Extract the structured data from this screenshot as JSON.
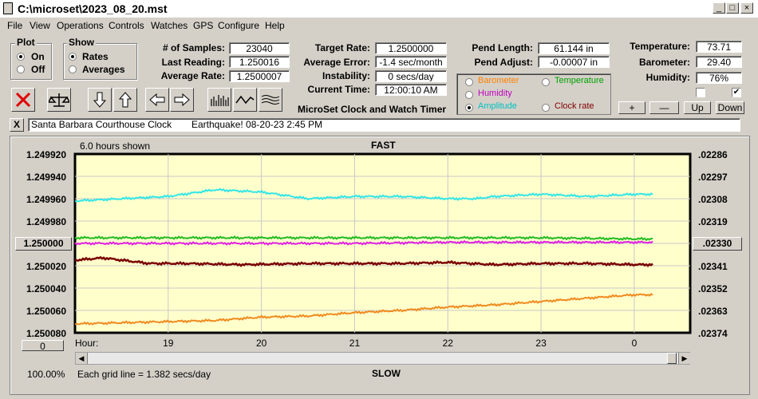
{
  "window": {
    "title": "C:\\microset\\2023_08_20.mst"
  },
  "menu": [
    "File",
    "View",
    "Operations",
    "Controls",
    "Watches",
    "GPS",
    "Configure",
    "Help"
  ],
  "plot_group": {
    "title": "Plot",
    "options": [
      "On",
      "Off"
    ],
    "selected": "On"
  },
  "show_group": {
    "title": "Show",
    "options": [
      "Rates",
      "Averages"
    ],
    "selected": "Rates"
  },
  "stats": {
    "samples_label": "# of Samples:",
    "samples": "23040",
    "last_label": "Last Reading:",
    "last": "1.250016",
    "avg_label": "Average Rate:",
    "avg": "1.2500007",
    "target_label": "Target Rate:",
    "target": "1.2500000",
    "avgerr_label": "Average Error:",
    "avgerr": "-1.4 sec/month",
    "instab_label": "Instability:",
    "instab": "0 secs/day",
    "time_label": "Current Time:",
    "time": "12:00:10 AM",
    "pendlen_label": "Pend Length:",
    "pendlen": "61.144 in",
    "pendadj_label": "Pend Adjust:",
    "pendadj": "-0.00007 in",
    "temp_label": "Temperature:",
    "temp": "73.71",
    "baro_label": "Barometer:",
    "baro": "29.40",
    "hum_label": "Humidity:",
    "hum": "76%"
  },
  "app_caption": "MicroSet Clock and Watch Timer",
  "series_select": {
    "options": [
      {
        "label": "Barometer",
        "color": "#ff8000",
        "selected": false
      },
      {
        "label": "Temperature",
        "color": "#00a000",
        "selected": false
      },
      {
        "label": "Humidity",
        "color": "#c000c0",
        "selected": false
      },
      {
        "label": "Amplitude",
        "color": "#00c0c0",
        "selected": true
      },
      {
        "label": "Clock rate",
        "color": "#800000",
        "selected": false
      }
    ]
  },
  "right_buttons": {
    "plus": "+",
    "minus": "—",
    "up": "Up",
    "down": "Down"
  },
  "checks": [
    false,
    true
  ],
  "note": {
    "close": "X",
    "clock_name": "Santa Barbara Courthouse Clock",
    "text": "Earthquake! 08-20-23 2:45 PM"
  },
  "chart_header": {
    "shown": "6.0 hours shown",
    "top": "FAST",
    "bottom": "SLOW",
    "grid_note": "Each grid line = 1.382 secs/day",
    "zoom": "100.00%"
  },
  "left_button": "1.250000",
  "right_button": ".02330",
  "bottom_left_button": "0",
  "chart_data": {
    "type": "line",
    "x_label": "Hour:",
    "x_ticks": [
      "19",
      "20",
      "21",
      "22",
      "23",
      "0"
    ],
    "y_left_ticks": [
      "1.249920",
      "1.249940",
      "1.249960",
      "1.249980",
      "1.250000",
      "1.250020",
      "1.250040",
      "1.250060",
      "1.250080"
    ],
    "y_right_ticks": [
      ".02286",
      ".02297",
      ".02308",
      ".02319",
      ".02330",
      ".02341",
      ".02352",
      ".02363",
      ".02374"
    ],
    "ylim_left": [
      1.24992,
      1.25008
    ],
    "inverted": true,
    "grid": true,
    "series": [
      {
        "name": "Amplitude",
        "color": "#33e6e6",
        "x": [
          18.0,
          18.5,
          19.0,
          19.5,
          20.0,
          20.5,
          21.0,
          21.5,
          22.0,
          22.3,
          22.5,
          23.0,
          23.5,
          24.0
        ],
        "y": [
          1.249962,
          1.24996,
          1.249958,
          1.249952,
          1.249954,
          1.24996,
          1.249958,
          1.249958,
          1.24996,
          1.24996,
          1.249958,
          1.249956,
          1.249958,
          1.249956
        ]
      },
      {
        "name": "Temperature",
        "color": "#22bb22",
        "x": [
          18.0,
          19.0,
          20.0,
          21.0,
          22.0,
          23.0,
          24.0
        ],
        "y": [
          1.249995,
          1.249995,
          1.249995,
          1.249995,
          1.249995,
          1.249995,
          1.249996
        ]
      },
      {
        "name": "Humidity",
        "color": "#e020e0",
        "x": [
          18.0,
          19.0,
          20.0,
          21.0,
          22.0,
          23.0,
          24.0
        ],
        "y": [
          1.25,
          1.25,
          1.25,
          1.25,
          1.249999,
          1.249999,
          1.249999
        ]
      },
      {
        "name": "Clock rate",
        "color": "#7a0000",
        "x": [
          18.0,
          18.3,
          18.8,
          19.2,
          19.8,
          20.5,
          21.0,
          21.5,
          22.0,
          22.5,
          23.0,
          23.5,
          24.0
        ],
        "y": [
          1.250015,
          1.250013,
          1.250018,
          1.250018,
          1.250019,
          1.250018,
          1.250018,
          1.250018,
          1.250017,
          1.250019,
          1.250018,
          1.250018,
          1.250019
        ]
      },
      {
        "name": "Barometer",
        "color": "#f08a20",
        "x": [
          18.0,
          18.5,
          19.0,
          19.5,
          20.0,
          20.5,
          21.0,
          21.5,
          22.0,
          22.5,
          23.0,
          23.5,
          24.0
        ],
        "y": [
          1.250072,
          1.250071,
          1.25007,
          1.250069,
          1.250066,
          1.250065,
          1.250062,
          1.25006,
          1.250057,
          1.250055,
          1.250052,
          1.250049,
          1.250046
        ]
      }
    ]
  }
}
